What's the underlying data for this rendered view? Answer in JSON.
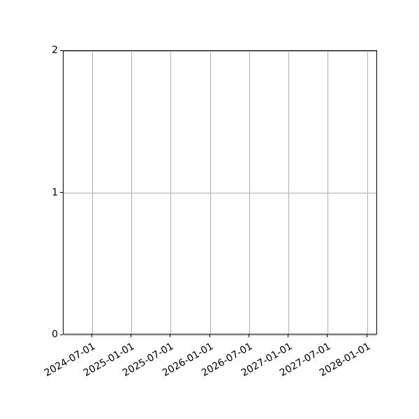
{
  "chart_data": {
    "type": "line",
    "title": "",
    "xlabel": "",
    "ylabel": "",
    "series": [],
    "x_axis": {
      "kind": "date",
      "tick_labels": [
        "2024-07-01",
        "2025-01-01",
        "2025-07-01",
        "2026-01-01",
        "2026-07-01",
        "2027-01-01",
        "2027-07-01",
        "2028-01-01"
      ],
      "xlim": [
        "2024-02-19",
        "2028-02-17"
      ],
      "tick_rotation_deg": 30
    },
    "y_axis": {
      "tick_labels": [
        "0",
        "1",
        "2"
      ],
      "tick_values": [
        0,
        1,
        2
      ],
      "ylim": [
        0,
        2
      ]
    },
    "grid": true,
    "legend": null,
    "colors": {
      "grid": "#b0b0b0",
      "axis": "#000000",
      "tick_text": "#000000",
      "background": "#ffffff"
    }
  }
}
